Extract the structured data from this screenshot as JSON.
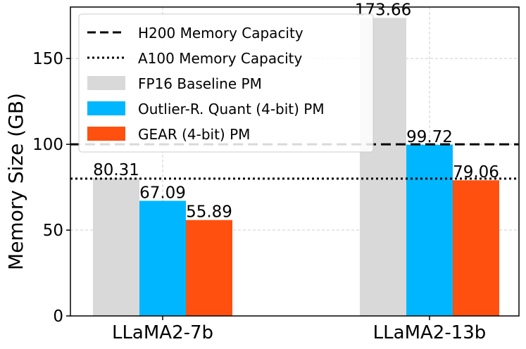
{
  "chart_data": {
    "type": "bar",
    "categories": [
      "LLaMA2-7b",
      "LLaMA2-13b"
    ],
    "series": [
      {
        "name": "FP16 Baseline PM",
        "values": [
          80.31,
          173.66
        ],
        "color": "#d9d9d9"
      },
      {
        "name": "Outlier-R. Quant (4-bit) PM",
        "values": [
          67.09,
          99.72
        ],
        "color": "#00b7ff"
      },
      {
        "name": "GEAR (4-bit) PM",
        "values": [
          55.89,
          79.06
        ],
        "color": "#ff5010"
      }
    ],
    "reference_lines": [
      {
        "name": "H200 Memory Capacity",
        "value": 100,
        "style": "dashed"
      },
      {
        "name": "A100 Memory Capacity",
        "value": 80,
        "style": "dotted"
      }
    ],
    "data_labels": [
      [
        "80.31",
        "67.09",
        "55.89"
      ],
      [
        "173.66",
        "99.72",
        "79.06"
      ]
    ],
    "ylabel": "Memory Size (GB)",
    "xlabel": "",
    "ylim": [
      0,
      180
    ],
    "yticks": [
      0,
      50,
      100,
      150
    ],
    "grid": true,
    "legend_position": "top-left"
  }
}
